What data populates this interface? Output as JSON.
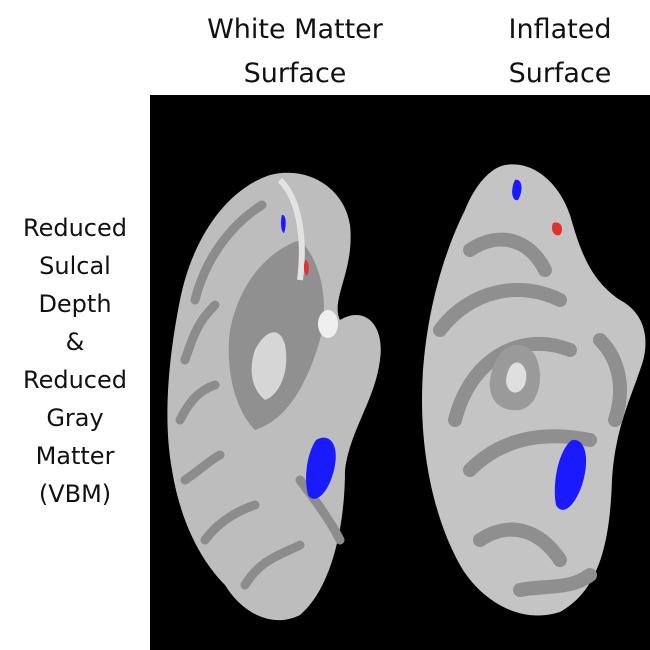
{
  "column_headers": [
    {
      "lines": [
        "White Matter",
        "Surface"
      ]
    },
    {
      "lines": [
        "Inflated",
        "Surface"
      ]
    }
  ],
  "row_label": {
    "lines": [
      "Reduced",
      "Sulcal",
      "Depth",
      "&",
      "Reduced",
      "Gray",
      "Matter",
      "(VBM)"
    ]
  }
}
